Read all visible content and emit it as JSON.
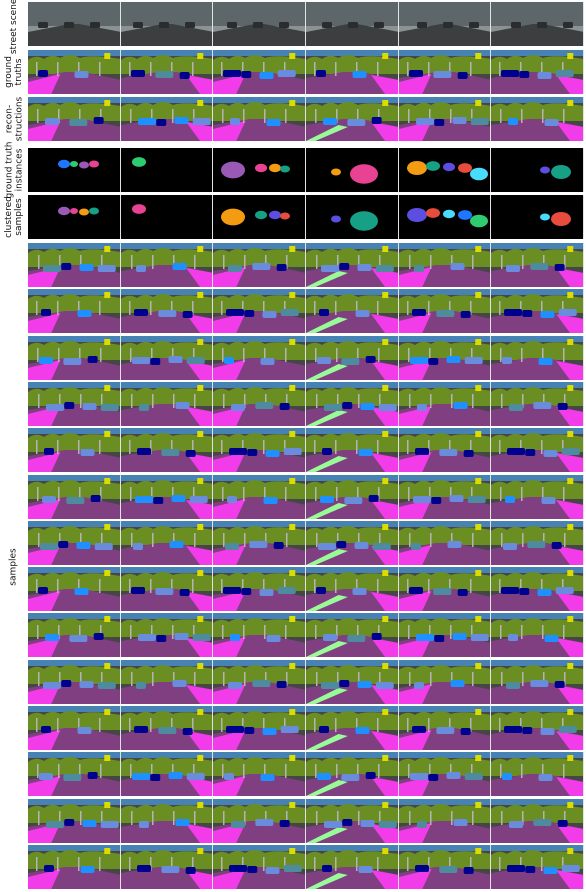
{
  "row_labels": {
    "street_scenes": "street scenes",
    "ground_truths": "ground\ntruths",
    "reconstructions": "recon-\nstructions",
    "gt_instances": "ground truth\ninstances",
    "clustered_samples": "clustered\nsamples",
    "samples": "samples"
  },
  "columns": 6,
  "sample_rows": 14,
  "palette": {
    "road": "#7f3f80",
    "sidewalk": "#f23be9",
    "vegetation": "#6b8e23",
    "sky": "#4682b4",
    "building": "#464646",
    "car": "#00008e",
    "car_light": "#6a8cdc",
    "car_teal": "#4f8b9e",
    "terrain": "#98fb98",
    "sign": "#dcdc00",
    "black": "#000000",
    "street_dark": "#3b3f40",
    "street_light": "#8c9294"
  }
}
